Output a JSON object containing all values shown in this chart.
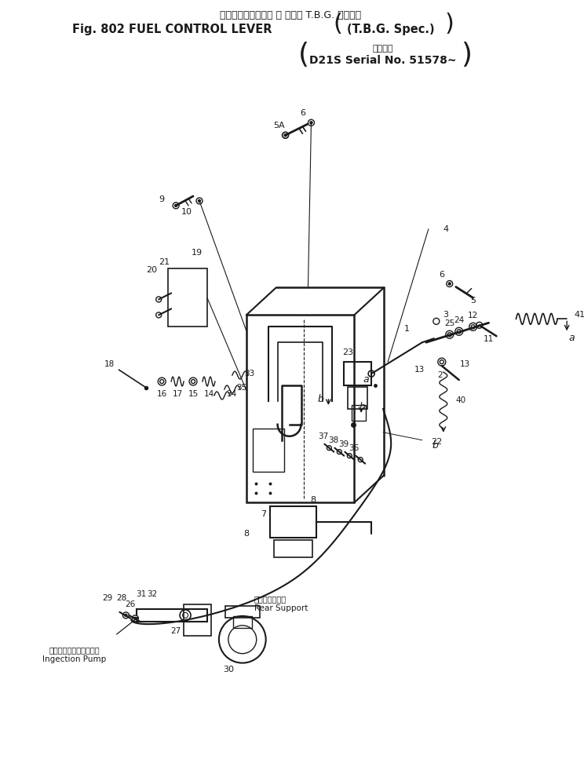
{
  "title_jp": "フェルコントロール レ バー（ T.B.G. 仕　様）",
  "title_en": "Fig. 802 FUEL CONTROL LEVER",
  "title_spec": "(T.B.G. Spec.)",
  "subtitle_jp": "適用号機",
  "subtitle_model": "D21S Serial No. 51578~",
  "pump_label_jp": "インジェクションポンプ",
  "pump_label_en": "Ingection Pump",
  "rear_support_jp": "リアーサポート",
  "rear_support_en": "Rear Support",
  "bg_color": "#ffffff",
  "lc": "#1a1a1a",
  "fig_width": 7.44,
  "fig_height": 9.81,
  "dpi": 100
}
